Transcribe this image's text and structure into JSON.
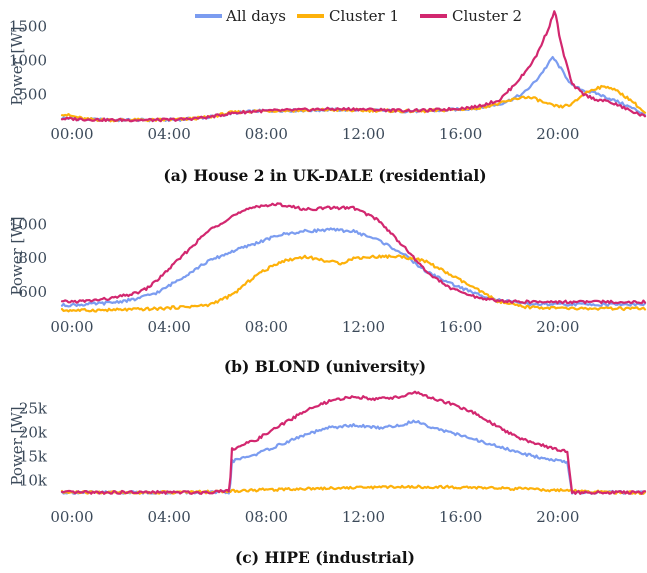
{
  "legend": [
    {
      "name": "All days",
      "color": "#7b9cf0"
    },
    {
      "name": "Cluster 1",
      "color": "#fdb10a"
    },
    {
      "name": "Cluster 2",
      "color": "#d2276f"
    }
  ],
  "chart_data": [
    {
      "type": "line",
      "caption": "(a) House 2 in UK-DALE (residential)",
      "ylabel": "Power [W]",
      "xlabel": "",
      "x_unit": "hour of day",
      "xlim": [
        0,
        24
      ],
      "ylim": [
        130,
        1800
      ],
      "xticks": [
        0,
        4,
        8,
        12,
        16,
        20
      ],
      "xtick_labels": [
        "00:00",
        "04:00",
        "08:00",
        "12:00",
        "16:00",
        "20:00"
      ],
      "yticks": [
        500,
        1000,
        1500
      ],
      "ytick_labels": [
        "500",
        "1000",
        "1500"
      ],
      "legend_position": "top-center",
      "series": [
        {
          "name": "All days",
          "color": "#7b9cf0",
          "x": [
            0,
            1,
            2,
            3,
            4,
            5,
            6,
            7,
            8,
            9,
            10,
            11,
            12,
            13,
            14,
            15,
            16,
            17,
            18,
            18.5,
            19,
            19.5,
            20,
            20.2,
            20.5,
            21,
            21.5,
            22,
            22.5,
            23,
            23.5,
            24
          ],
          "y": [
            160,
            140,
            130,
            130,
            130,
            140,
            170,
            230,
            260,
            270,
            270,
            280,
            280,
            270,
            260,
            260,
            280,
            300,
            360,
            430,
            520,
            700,
            940,
            1050,
            900,
            630,
            560,
            520,
            450,
            380,
            300,
            210
          ]
        },
        {
          "name": "Cluster 1",
          "color": "#fdb10a",
          "x": [
            0,
            1,
            2,
            3,
            4,
            5,
            6,
            7,
            8,
            9,
            10,
            11,
            12,
            13,
            14,
            15,
            16,
            17,
            18,
            18.5,
            19,
            19.5,
            20,
            20.5,
            21,
            21.5,
            22,
            22.5,
            23,
            23.5,
            24
          ],
          "y": [
            220,
            140,
            130,
            130,
            130,
            140,
            170,
            240,
            260,
            270,
            270,
            280,
            270,
            270,
            260,
            260,
            280,
            300,
            370,
            420,
            470,
            440,
            360,
            320,
            360,
            520,
            600,
            620,
            520,
            400,
            230
          ]
        },
        {
          "name": "Cluster 2",
          "color": "#d2276f",
          "x": [
            0,
            1,
            2,
            3,
            4,
            5,
            6,
            7,
            8,
            9,
            10,
            11,
            12,
            13,
            14,
            15,
            16,
            17,
            18,
            18.5,
            19,
            19.5,
            20,
            20.3,
            20.5,
            21,
            21.5,
            22,
            22.5,
            23,
            23.5,
            24
          ],
          "y": [
            150,
            140,
            130,
            130,
            130,
            140,
            170,
            230,
            260,
            270,
            280,
            290,
            290,
            280,
            270,
            270,
            290,
            320,
            420,
            600,
            800,
            1050,
            1450,
            1750,
            1300,
            650,
            500,
            430,
            400,
            330,
            250,
            180
          ]
        }
      ]
    },
    {
      "type": "line",
      "caption": "(b) BLOND (university)",
      "ylabel": "Power [W]",
      "xlabel": "",
      "x_unit": "hour of day",
      "xlim": [
        0,
        24
      ],
      "ylim": [
        480,
        1170
      ],
      "xticks": [
        0,
        4,
        8,
        12,
        16,
        20
      ],
      "xtick_labels": [
        "00:00",
        "04:00",
        "08:00",
        "12:00",
        "16:00",
        "20:00"
      ],
      "yticks": [
        600,
        800,
        1000
      ],
      "ytick_labels": [
        "600",
        "800",
        "1000"
      ],
      "series": [
        {
          "name": "All days",
          "color": "#7b9cf0",
          "x": [
            0,
            1,
            2,
            3,
            4,
            5,
            6,
            7,
            8,
            9,
            10,
            11,
            12,
            13,
            14,
            15,
            16,
            17,
            18,
            19,
            20,
            21,
            22,
            23,
            24
          ],
          "y": [
            520,
            525,
            535,
            555,
            600,
            690,
            780,
            840,
            890,
            940,
            960,
            970,
            960,
            910,
            830,
            720,
            650,
            590,
            550,
            530,
            525,
            525,
            525,
            525,
            525
          ]
        },
        {
          "name": "Cluster 1",
          "color": "#fdb10a",
          "x": [
            0,
            1,
            2,
            3,
            4,
            5,
            6,
            7,
            7.5,
            8,
            9,
            10,
            11,
            11.5,
            12,
            13,
            14,
            15,
            16,
            17,
            18,
            19,
            20,
            21,
            22,
            23,
            24
          ],
          "y": [
            490,
            490,
            492,
            495,
            500,
            510,
            520,
            580,
            640,
            700,
            780,
            810,
            780,
            770,
            800,
            810,
            810,
            780,
            700,
            620,
            540,
            510,
            505,
            500,
            500,
            500,
            500
          ]
        },
        {
          "name": "Cluster 2",
          "color": "#d2276f",
          "x": [
            0,
            1,
            2,
            3,
            3.5,
            4,
            5,
            6,
            7,
            8,
            9,
            10,
            11,
            12,
            13,
            14,
            15,
            16,
            17,
            18,
            19,
            20,
            21,
            22,
            23,
            24
          ],
          "y": [
            540,
            545,
            560,
            590,
            620,
            680,
            820,
            960,
            1050,
            1110,
            1120,
            1090,
            1100,
            1100,
            1030,
            880,
            720,
            620,
            570,
            545,
            540,
            540,
            540,
            540,
            540,
            540
          ]
        }
      ]
    },
    {
      "type": "line",
      "caption": "(c) HIPE (industrial)",
      "ylabel": "Power [W]",
      "xlabel": "",
      "x_unit": "hour of day",
      "xlim": [
        0,
        24
      ],
      "ylim": [
        5500,
        29500
      ],
      "xticks": [
        0,
        4,
        8,
        12,
        16,
        20
      ],
      "xtick_labels": [
        "00:00",
        "04:00",
        "08:00",
        "12:00",
        "16:00",
        "20:00"
      ],
      "yticks": [
        10000,
        15000,
        20000,
        25000
      ],
      "ytick_labels": [
        "10k",
        "15k",
        "20k",
        "25k"
      ],
      "series": [
        {
          "name": "All days",
          "color": "#7b9cf0",
          "x": [
            0,
            2,
            4,
            6,
            6.9,
            7,
            8,
            9,
            10,
            11,
            12,
            13,
            14,
            14.5,
            15,
            16,
            17,
            18,
            19,
            20,
            20.8,
            21,
            22,
            23,
            24
          ],
          "y": [
            7500,
            7500,
            7500,
            7500,
            7500,
            14000,
            15500,
            17500,
            19500,
            21000,
            21500,
            21000,
            21500,
            22500,
            21500,
            20000,
            18500,
            17000,
            15500,
            14500,
            13800,
            7500,
            7500,
            7500,
            7500
          ]
        },
        {
          "name": "Cluster 1",
          "color": "#fdb10a",
          "x": [
            0,
            2,
            4,
            6,
            8,
            10,
            12,
            14,
            16,
            18,
            20,
            22,
            24
          ],
          "y": [
            7500,
            7500,
            7500,
            7600,
            8000,
            8300,
            8500,
            8700,
            8600,
            8400,
            8000,
            7600,
            7400
          ]
        },
        {
          "name": "Cluster 2",
          "color": "#d2276f",
          "x": [
            0,
            2,
            4,
            6,
            6.9,
            7,
            8,
            9,
            10,
            11,
            12,
            13,
            14,
            14.5,
            15,
            16,
            17,
            18,
            19,
            20,
            20.8,
            21,
            22,
            23,
            24
          ],
          "y": [
            7500,
            7500,
            7500,
            7500,
            8000,
            16500,
            18500,
            21500,
            24500,
            26500,
            27500,
            27000,
            27500,
            28500,
            27500,
            26000,
            24000,
            21000,
            18500,
            17000,
            16000,
            7500,
            7500,
            7500,
            7500
          ]
        }
      ]
    }
  ]
}
